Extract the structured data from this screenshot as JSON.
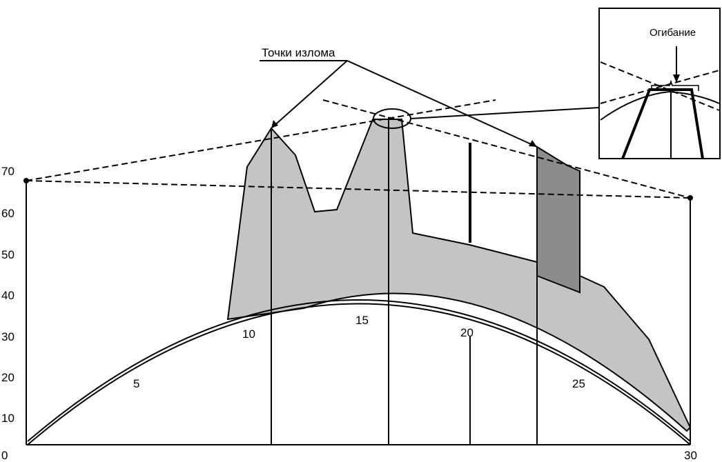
{
  "labels": {
    "breakpoints": "Точки излома",
    "envelope": "Огибание"
  },
  "y_axis_ticks": [
    "0",
    "10",
    "20",
    "30",
    "40",
    "50",
    "60",
    "70"
  ],
  "x_axis_ticks": [
    "30"
  ],
  "arc_markers": [
    "5",
    "10",
    "15",
    "20",
    "25"
  ],
  "colors": {
    "line": "#000000",
    "terrain_fill": "#c4c4c4",
    "obstacle_fill": "#8c8c8c",
    "background": "#ffffff"
  }
}
